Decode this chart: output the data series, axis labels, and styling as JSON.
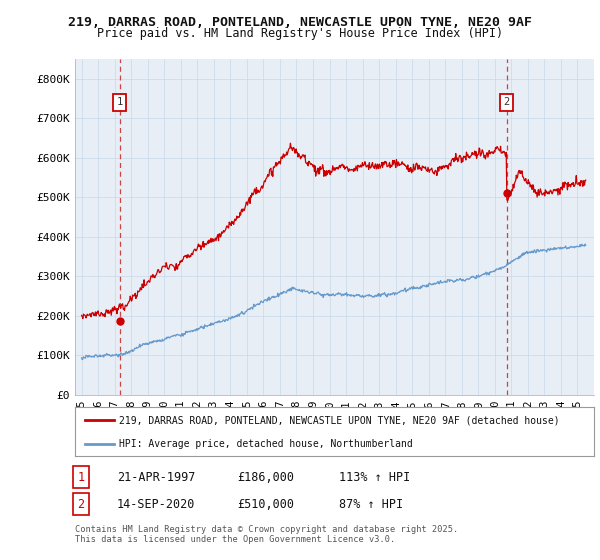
{
  "title_line1": "219, DARRAS ROAD, PONTELAND, NEWCASTLE UPON TYNE, NE20 9AF",
  "title_line2": "Price paid vs. HM Land Registry's House Price Index (HPI)",
  "ylim": [
    0,
    850000
  ],
  "yticks": [
    0,
    100000,
    200000,
    300000,
    400000,
    500000,
    600000,
    700000,
    800000
  ],
  "ytick_labels": [
    "£0",
    "£100K",
    "£200K",
    "£300K",
    "£400K",
    "£500K",
    "£600K",
    "£700K",
    "£800K"
  ],
  "sale1_date_num": 1997.3,
  "sale1_price": 186000,
  "sale1_label": "1",
  "sale2_date_num": 2020.71,
  "sale2_price": 510000,
  "sale2_label": "2",
  "red_color": "#cc0000",
  "blue_color": "#6699cc",
  "dashed_color": "#cc4444",
  "chart_bg": "#e8eef5",
  "legend_entry1": "219, DARRAS ROAD, PONTELAND, NEWCASTLE UPON TYNE, NE20 9AF (detached house)",
  "legend_entry2": "HPI: Average price, detached house, Northumberland",
  "table_row1": [
    "1",
    "21-APR-1997",
    "£186,000",
    "113% ↑ HPI"
  ],
  "table_row2": [
    "2",
    "14-SEP-2020",
    "£510,000",
    "87% ↑ HPI"
  ],
  "footnote": "Contains HM Land Registry data © Crown copyright and database right 2025.\nThis data is licensed under the Open Government Licence v3.0.",
  "background_color": "#ffffff",
  "grid_color": "#c8d8e8"
}
